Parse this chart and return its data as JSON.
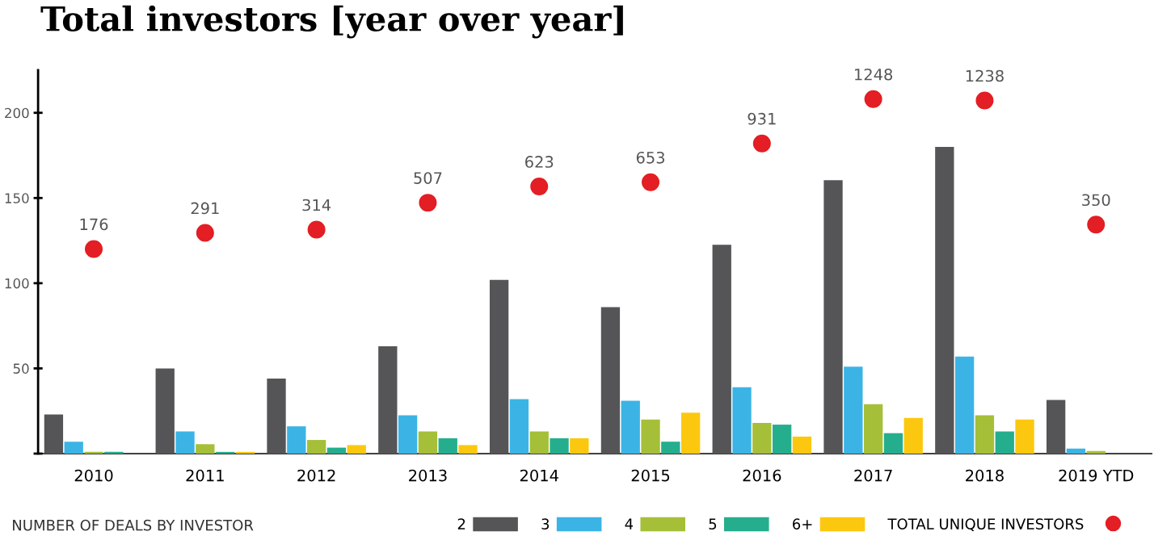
{
  "chart_data": {
    "type": "bar",
    "title": "Total investors [year over year]",
    "categories": [
      "2010",
      "2011",
      "2012",
      "2013",
      "2014",
      "2015",
      "2016",
      "2017",
      "2018",
      "2019 YTD"
    ],
    "legend_title": "NUMBER OF DEALS BY INVESTOR",
    "series": [
      {
        "name": "2",
        "color": "#555557",
        "values": [
          23,
          50,
          44,
          63,
          102,
          86,
          122.5,
          160.5,
          180,
          31.5
        ]
      },
      {
        "name": "3",
        "color": "#3bb4e5",
        "values": [
          7,
          13,
          16,
          22.5,
          32,
          31,
          39,
          51,
          57,
          3
        ]
      },
      {
        "name": "4",
        "color": "#a5bf38",
        "values": [
          1,
          5.5,
          8,
          13,
          13,
          20,
          18,
          29,
          22.5,
          1.5
        ]
      },
      {
        "name": "5",
        "color": "#25ae8d",
        "values": [
          1,
          1,
          3.5,
          9,
          9,
          7,
          17,
          12,
          13,
          null
        ]
      },
      {
        "name": "6+",
        "color": "#fcc80f",
        "values": [
          0,
          1,
          5,
          5,
          9,
          24,
          10,
          21,
          20,
          null
        ]
      },
      {
        "name": "TOTAL UNIQUE INVESTORS",
        "type": "scatter",
        "axis": "y2",
        "color": "#e31e24",
        "marker": "circle",
        "values": [
          176,
          291,
          314,
          507,
          623,
          653,
          931,
          1248,
          1238,
          350
        ],
        "value_labels": [
          "176",
          "291",
          "314",
          "507",
          "623",
          "653",
          "931",
          "1248",
          "1238",
          "350"
        ]
      }
    ],
    "ylim": [
      0,
      225
    ],
    "yticks": [
      {
        "value": 0,
        "label": null
      },
      50,
      100,
      150,
      200
    ],
    "y2lim": [
      -1288,
      1455
    ],
    "grid": false,
    "legend": "bottom"
  }
}
